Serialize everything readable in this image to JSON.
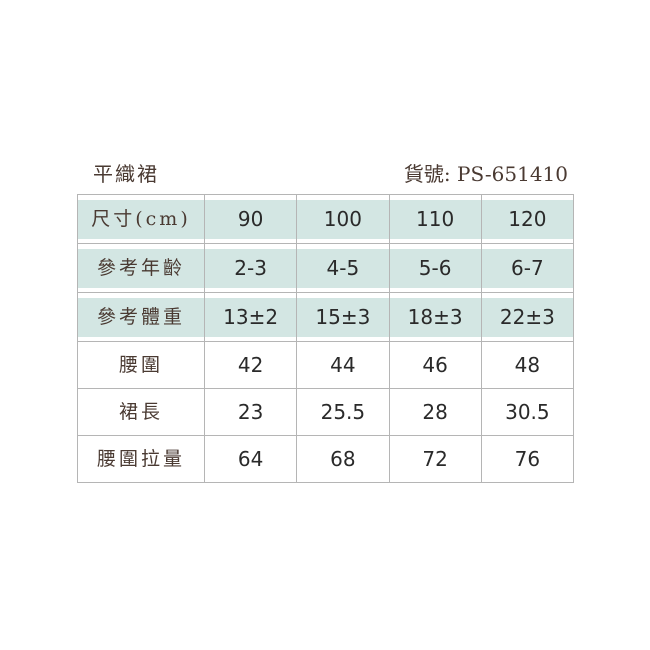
{
  "title": "平織裙",
  "product_code": "貨號: PS-651410",
  "rows": [
    {
      "label": "尺寸(cm)",
      "values": [
        "90",
        "100",
        "110",
        "120"
      ],
      "highlight": true
    },
    {
      "label": "參考年齡",
      "values": [
        "2-3",
        "4-5",
        "5-6",
        "6-7"
      ],
      "highlight": true
    },
    {
      "label": "參考體重",
      "values": [
        "13±2",
        "15±3",
        "18±3",
        "22±3"
      ],
      "highlight": true
    },
    {
      "label": "腰圍",
      "values": [
        "42",
        "44",
        "46",
        "48"
      ]
    },
    {
      "label": "裙長",
      "values": [
        "23",
        "25.5",
        "28",
        "30.5"
      ]
    },
    {
      "label": "腰圍拉量",
      "values": [
        "64",
        "68",
        "72",
        "76"
      ]
    }
  ],
  "colors": {
    "highlight": "#d3e6e3",
    "border": "#b5b5b5",
    "title": "#4a3a32"
  }
}
